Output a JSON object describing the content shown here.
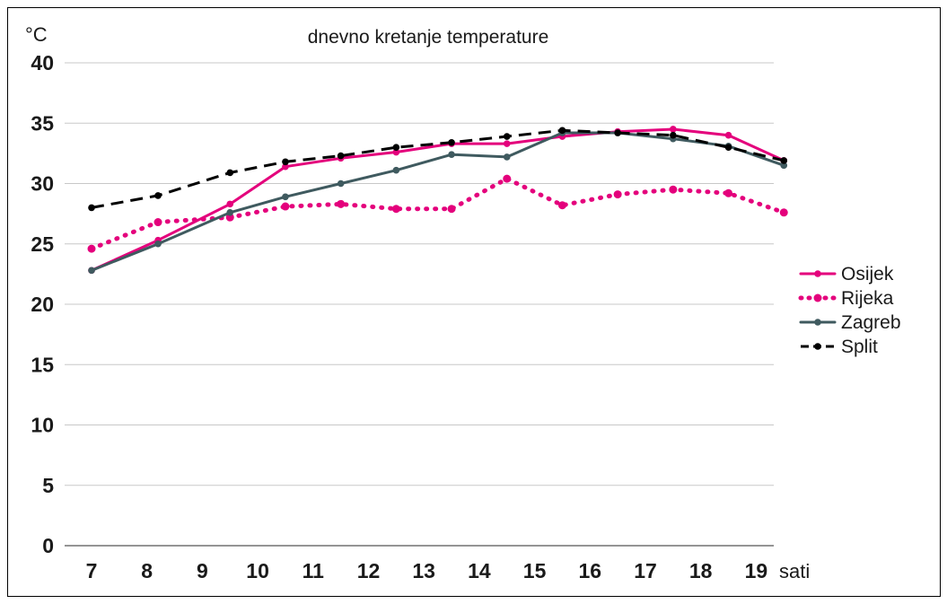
{
  "chart_data": {
    "type": "line",
    "title": "dnevno kretanje temperature",
    "ylabel": "°C",
    "xlabel": "sati",
    "ylim": [
      0,
      40
    ],
    "yticks": [
      "0",
      "5",
      "10",
      "15",
      "20",
      "25",
      "30",
      "35",
      "40"
    ],
    "categories": [
      "7",
      "8",
      "9",
      "10",
      "11",
      "12",
      "13",
      "14",
      "15",
      "16",
      "17",
      "18",
      "19"
    ],
    "grid": true,
    "legend_position": "right",
    "series": [
      {
        "name": "Osijek",
        "color": "#e4007c",
        "style": "solid",
        "x": [
          7,
          8.2,
          9.5,
          10.5,
          11.5,
          12.5,
          13.5,
          14.5,
          15.5,
          16.5,
          17.5,
          18.5,
          19.5
        ],
        "values": [
          22.8,
          25.3,
          28.3,
          31.4,
          32.1,
          32.6,
          33.3,
          33.3,
          33.9,
          34.3,
          34.5,
          34.0,
          31.9
        ]
      },
      {
        "name": "Rijeka",
        "color": "#e4007c",
        "style": "dotted",
        "x": [
          7,
          8.2,
          9.5,
          10.5,
          11.5,
          12.5,
          13.5,
          14.5,
          15.5,
          16.5,
          17.5,
          18.5,
          19.5
        ],
        "values": [
          24.6,
          26.8,
          27.2,
          28.1,
          28.3,
          27.9,
          27.9,
          30.4,
          28.2,
          29.1,
          29.5,
          29.2,
          27.6
        ]
      },
      {
        "name": "Zagreb",
        "color": "#3f5a5f",
        "style": "solid",
        "x": [
          7,
          8.2,
          9.5,
          10.5,
          11.5,
          12.5,
          13.5,
          14.5,
          15.5,
          16.5,
          17.5,
          18.5,
          19.5
        ],
        "values": [
          22.8,
          25.0,
          27.6,
          28.9,
          30.0,
          31.1,
          32.4,
          32.2,
          34.2,
          34.2,
          33.7,
          33.1,
          31.5
        ]
      },
      {
        "name": "Split",
        "color": "#000000",
        "style": "dashed",
        "x": [
          7,
          8.2,
          9.5,
          10.5,
          11.5,
          12.5,
          13.5,
          14.5,
          15.5,
          16.5,
          17.5,
          18.5,
          19.5
        ],
        "values": [
          28.0,
          29.0,
          30.9,
          31.8,
          32.3,
          33.0,
          33.4,
          33.9,
          34.4,
          34.2,
          34.0,
          33.0,
          31.9
        ]
      }
    ]
  }
}
